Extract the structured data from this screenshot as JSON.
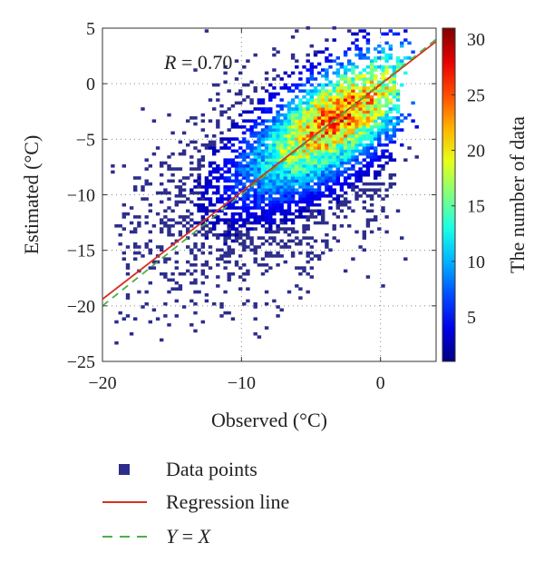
{
  "chart_data": {
    "type": "heatmap",
    "xlabel": "Observed (°C)",
    "ylabel": "Estimated (°C)",
    "xlim": [
      -20,
      4
    ],
    "ylim": [
      -25,
      5
    ],
    "x_ticks": [
      -20,
      -10,
      0
    ],
    "y_ticks": [
      5,
      0,
      -5,
      -10,
      -15,
      -20,
      -25
    ],
    "grid": true,
    "annotation": "R = 0.70",
    "annotation_parts": {
      "var": "R",
      "rest": " = 0.70"
    },
    "colorbar": {
      "label": "The number of data",
      "range": [
        1,
        31
      ],
      "ticks": [
        5,
        10,
        15,
        20,
        25,
        30
      ]
    },
    "density_model": {
      "core": {
        "center": [
          -3,
          -3
        ],
        "sigma_along": 5.5,
        "sigma_across": 2.3,
        "angle_deg": 45,
        "peak": 22
      },
      "halo": {
        "center": [
          -6,
          -7
        ],
        "sigma_along": 7.5,
        "sigma_across": 3.8,
        "angle_deg": 45
      }
    },
    "series": [
      {
        "name": "Regression line",
        "type": "line",
        "x": [
          -20,
          4
        ],
        "y": [
          -19.4,
          3.8
        ],
        "color": "#d7301f"
      },
      {
        "name": "Y = X",
        "type": "line",
        "style": "dashed",
        "x": [
          -20,
          5
        ],
        "y": [
          -20,
          5
        ],
        "color": "#4daf4a"
      }
    ],
    "legend": {
      "position": "bottom",
      "items": [
        {
          "key": "points",
          "label": "Data points",
          "color": "#2d2d8c"
        },
        {
          "key": "regression",
          "label": "Regression line",
          "color": "#d7301f"
        },
        {
          "key": "yx",
          "label_parts": [
            "Y",
            " = ",
            "X"
          ],
          "color": "#4daf4a"
        }
      ]
    }
  }
}
